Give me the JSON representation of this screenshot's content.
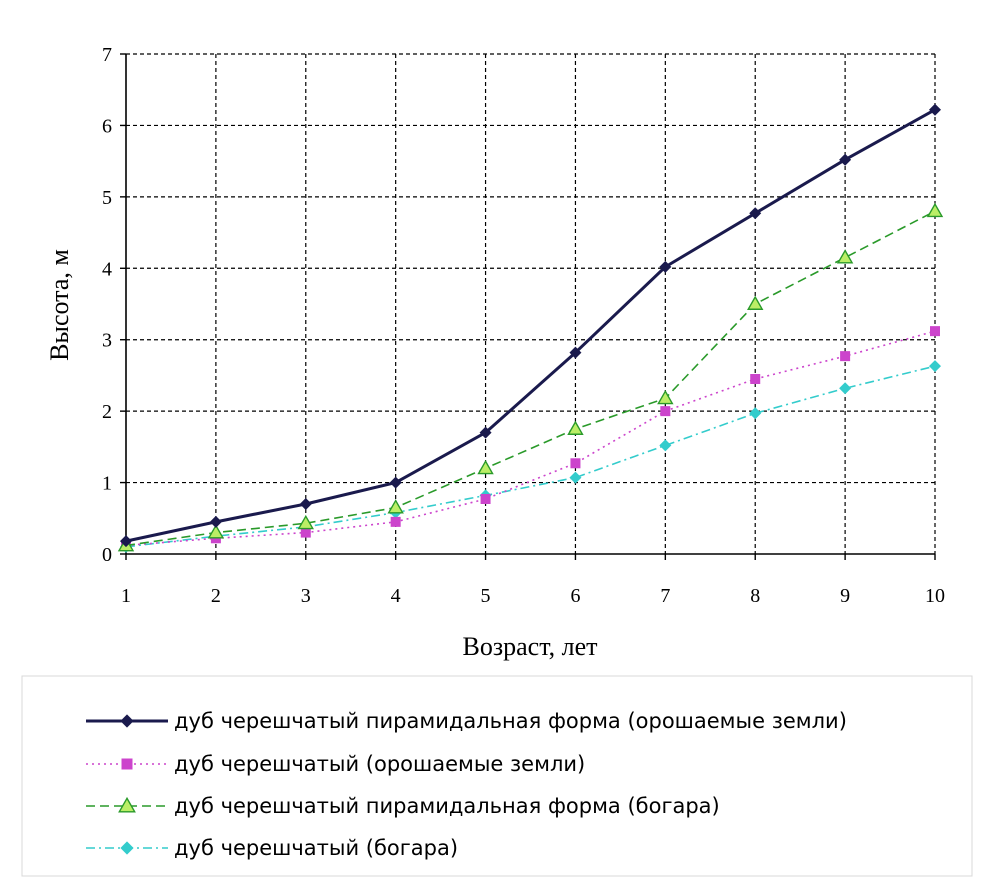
{
  "chart_data": {
    "type": "line",
    "xlabel": "Возраст, лет",
    "ylabel": "Высота, м",
    "x": [
      1,
      2,
      3,
      4,
      5,
      6,
      7,
      8,
      9,
      10
    ],
    "xlim": [
      1,
      10
    ],
    "ylim": [
      0,
      7
    ],
    "yticks": [
      0,
      1,
      2,
      3,
      4,
      5,
      6,
      7
    ],
    "grid": true,
    "legend": "bottom",
    "series": [
      {
        "name": "дуб черешчатый пирамидальная форма (орошаемые земли)",
        "values": [
          0.18,
          0.45,
          0.7,
          1.0,
          1.7,
          2.82,
          4.02,
          4.77,
          5.52,
          6.22
        ],
        "color": "#1a1a4d",
        "line": "solid",
        "marker": "diamond"
      },
      {
        "name": "дуб черешчатый (орошаемые земли)",
        "values": [
          0.12,
          0.22,
          0.3,
          0.45,
          0.77,
          1.27,
          2.0,
          2.45,
          2.77,
          3.12
        ],
        "color": "#cc44cc",
        "line": "dotted",
        "marker": "square"
      },
      {
        "name": "дуб черешчатый пирамидальная форма (богара)",
        "values": [
          0.12,
          0.3,
          0.43,
          0.65,
          1.2,
          1.75,
          2.18,
          3.5,
          4.15,
          4.8
        ],
        "color": "#2a9a2a",
        "marker_fill": "#bbee66",
        "line": "dashed",
        "marker": "triangle"
      },
      {
        "name": "дуб черешчатый (богара)",
        "values": [
          0.1,
          0.25,
          0.38,
          0.58,
          0.82,
          1.07,
          1.52,
          1.97,
          2.32,
          2.63
        ],
        "color": "#33cccc",
        "line": "dashdot",
        "marker": "diamond"
      }
    ]
  }
}
